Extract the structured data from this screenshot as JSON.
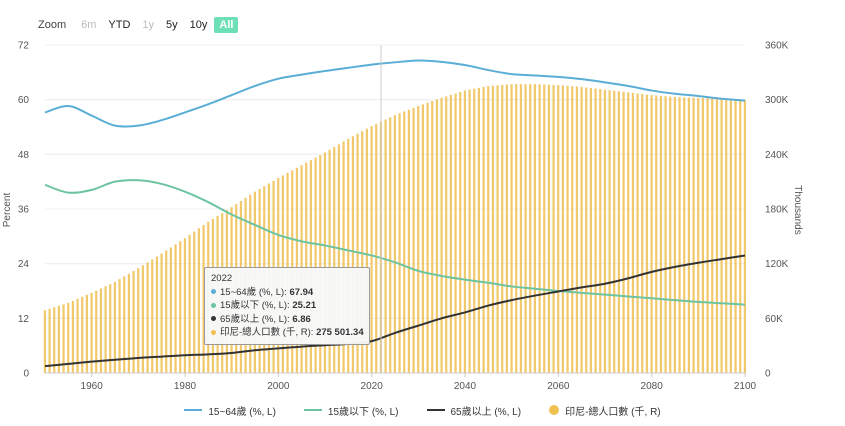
{
  "zoom": {
    "label": "Zoom",
    "buttons": [
      {
        "label": "6m",
        "state": "disabled"
      },
      {
        "label": "YTD",
        "state": "normal"
      },
      {
        "label": "1y",
        "state": "disabled"
      },
      {
        "label": "5y",
        "state": "normal"
      },
      {
        "label": "10y",
        "state": "normal"
      },
      {
        "label": "All",
        "state": "active"
      }
    ]
  },
  "tooltip": {
    "year": "2022",
    "rows": [
      {
        "label": "15~64歲 (%, L): ",
        "value": "67.94",
        "color": "#5aaed6"
      },
      {
        "label": "15歲以下 (%, L): ",
        "value": "25.21",
        "color": "#6cc4a0"
      },
      {
        "label": "65歲以上 (%, L): ",
        "value": "6.86",
        "color": "#333333"
      },
      {
        "label": "印尼-總人口數 (千, R): ",
        "value": "275 501.34",
        "color": "#f0c050"
      }
    ]
  },
  "chart_data": {
    "type": "line",
    "xlabel": "",
    "ylabel_left": "Percent",
    "ylabel_right": "Thousands",
    "x_ticks": [
      "1960",
      "1980",
      "2000",
      "2020",
      "2040",
      "2060",
      "2080",
      "2100"
    ],
    "y_left_ticks": [
      "0",
      "12",
      "24",
      "36",
      "48",
      "60",
      "72"
    ],
    "y_right_ticks": [
      "0",
      "60K",
      "120K",
      "180K",
      "240K",
      "300K",
      "360K"
    ],
    "xlim": [
      1950,
      2100
    ],
    "ylim_left": [
      0,
      72
    ],
    "ylim_right": [
      0,
      360000
    ],
    "grid": true,
    "legend_position": "bottom",
    "x": [
      1950,
      1955,
      1960,
      1965,
      1970,
      1975,
      1980,
      1985,
      1990,
      1995,
      2000,
      2005,
      2010,
      2015,
      2020,
      2025,
      2030,
      2035,
      2040,
      2045,
      2050,
      2055,
      2060,
      2065,
      2070,
      2075,
      2080,
      2085,
      2090,
      2095,
      2100
    ],
    "series": [
      {
        "name": "15~64歲 (%, L)",
        "axis": "left",
        "kind": "line",
        "color": "#5aaed6",
        "values": [
          57.2,
          58.6,
          56.5,
          54.3,
          54.3,
          55.5,
          57.2,
          59.0,
          61.0,
          63.0,
          64.6,
          65.5,
          66.3,
          67.0,
          67.7,
          68.2,
          68.6,
          68.3,
          67.6,
          66.5,
          65.6,
          65.3,
          65.0,
          64.5,
          63.8,
          63.0,
          62.0,
          61.3,
          60.8,
          60.2,
          59.8
        ]
      },
      {
        "name": "15歲以下 (%, L)",
        "axis": "left",
        "kind": "line",
        "color": "#6cc4a0",
        "values": [
          41.3,
          39.6,
          40.2,
          42.0,
          42.3,
          41.5,
          39.8,
          37.5,
          34.8,
          32.5,
          30.3,
          28.9,
          28.0,
          26.9,
          25.8,
          24.3,
          22.4,
          21.3,
          20.5,
          19.8,
          19.0,
          18.5,
          18.0,
          17.6,
          17.2,
          16.8,
          16.4,
          16.0,
          15.6,
          15.3,
          15.0
        ]
      },
      {
        "name": "65歲以上 (%, L)",
        "axis": "left",
        "kind": "line",
        "color": "#333333",
        "values": [
          1.5,
          2.0,
          2.5,
          2.9,
          3.3,
          3.6,
          3.9,
          4.1,
          4.4,
          5.0,
          5.4,
          5.8,
          6.1,
          6.4,
          7.0,
          8.8,
          10.4,
          12.0,
          13.3,
          14.8,
          16.0,
          17.0,
          17.9,
          18.8,
          19.6,
          20.8,
          22.2,
          23.3,
          24.2,
          25.0,
          25.8
        ]
      },
      {
        "name": "印尼-總人口數 (千, R)",
        "axis": "right",
        "kind": "bar",
        "color": "#f0c050",
        "values": [
          69000,
          77000,
          88000,
          100000,
          115000,
          131000,
          148000,
          166000,
          182000,
          199000,
          214000,
          228000,
          242000,
          257000,
          271000,
          283000,
          293000,
          302000,
          310000,
          315000,
          317000,
          317000,
          316000,
          314000,
          311000,
          308000,
          305000,
          303000,
          302000,
          301000,
          300000
        ]
      }
    ]
  }
}
